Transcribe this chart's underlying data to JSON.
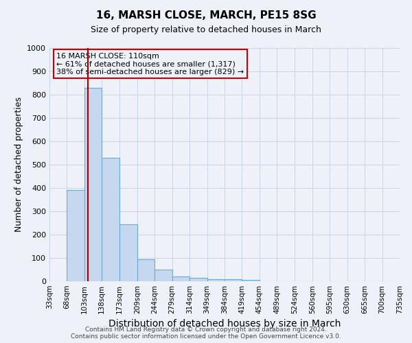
{
  "title": "16, MARSH CLOSE, MARCH, PE15 8SG",
  "subtitle": "Size of property relative to detached houses in March",
  "xlabel": "Distribution of detached houses by size in March",
  "ylabel": "Number of detached properties",
  "footer_line1": "Contains HM Land Registry data © Crown copyright and database right 2024.",
  "footer_line2": "Contains public sector information licensed under the Open Government Licence v3.0.",
  "annotation_line1": "16 MARSH CLOSE: 110sqm",
  "annotation_line2": "← 61% of detached houses are smaller (1,317)",
  "annotation_line3": "38% of semi-detached houses are larger (829) →",
  "property_size": 110,
  "bin_edges": [
    33,
    68,
    103,
    138,
    173,
    209,
    244,
    279,
    314,
    349,
    384,
    419,
    454,
    489,
    524,
    560,
    595,
    630,
    665,
    700,
    735
  ],
  "bar_heights": [
    0,
    390,
    830,
    530,
    245,
    95,
    50,
    20,
    15,
    10,
    8,
    5,
    0,
    0,
    0,
    0,
    0,
    0,
    0,
    0
  ],
  "bar_color": "#c5d8ef",
  "bar_edge_color": "#6aaad4",
  "red_line_color": "#aa0000",
  "annotation_box_color": "#cc0000",
  "grid_color": "#c8d4e8",
  "background_color": "#eef2f8",
  "ylim": [
    0,
    1000
  ],
  "yticks": [
    0,
    100,
    200,
    300,
    400,
    500,
    600,
    700,
    800,
    900,
    1000
  ],
  "tick_labels": [
    "33sqm",
    "68sqm",
    "103sqm",
    "138sqm",
    "173sqm",
    "209sqm",
    "244sqm",
    "279sqm",
    "314sqm",
    "349sqm",
    "384sqm",
    "419sqm",
    "454sqm",
    "489sqm",
    "524sqm",
    "560sqm",
    "595sqm",
    "630sqm",
    "665sqm",
    "700sqm",
    "735sqm"
  ],
  "title_fontsize": 11,
  "subtitle_fontsize": 9,
  "xlabel_fontsize": 10,
  "ylabel_fontsize": 9,
  "tick_fontsize": 7.5,
  "annotation_fontsize": 8,
  "footer_fontsize": 6.5
}
